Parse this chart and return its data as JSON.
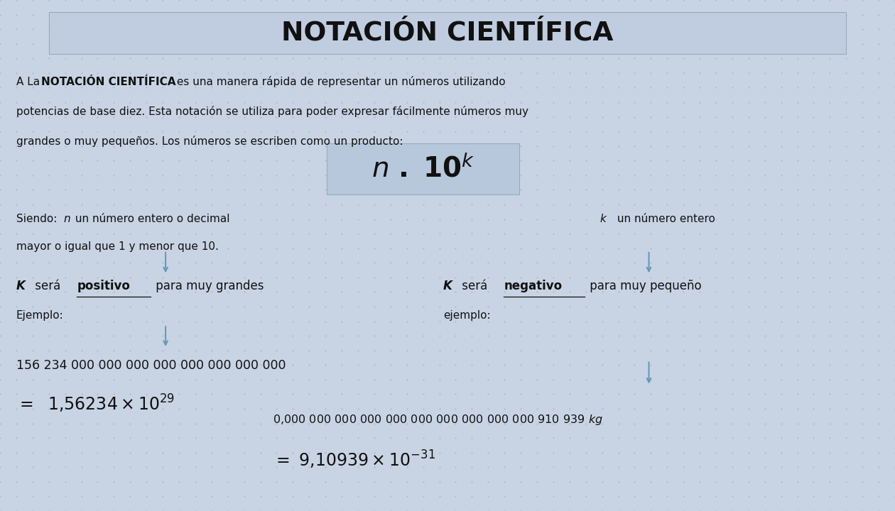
{
  "title": "NOTACIÓN CIENTÍFICA",
  "bg_outer": "#c8d4e4",
  "bg_inner": "#e0e8f4",
  "title_box_color": "#c0cce0",
  "formula_box_color": "#b8c8dc",
  "intro_line1_normal": "A La ",
  "intro_line1_bold": "NOTACIÓN CIENTÍFICA",
  "intro_line1_rest": " es una manera rápida de representar un números utilizando",
  "intro_line2": "potencias de base diez. Esta notación se utiliza para poder expresar fácilmente números muy",
  "intro_line3": "grandes o muy pequeños. Los números se escriben como un producto:",
  "big_number": "156 234 000 000 000 000 000 000 000 000",
  "small_number": "0,000 000 000 000 000 000 000 000 000 000 910 939 kg",
  "text_color": "#111111",
  "arrow_color": "#6699bb",
  "dot_color": "#99aabb"
}
